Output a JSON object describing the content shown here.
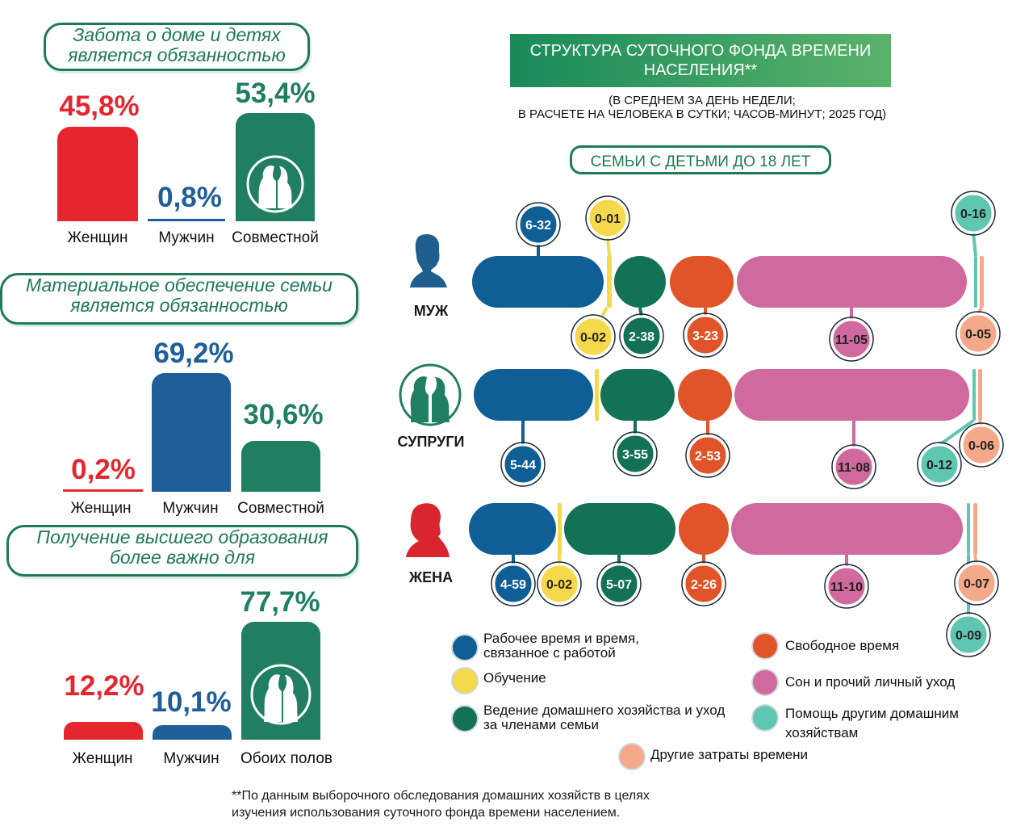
{
  "left_charts": [
    {
      "title_lines": [
        "Забота о доме и детях",
        "является обязанностью"
      ],
      "bars": [
        {
          "label": "Женщин",
          "pct": "45,8%",
          "value": 45.8,
          "color": "#e5262f"
        },
        {
          "label": "Мужчин",
          "pct": "0,8%",
          "value": 0.8,
          "color": "#1f5f99"
        },
        {
          "label": "Совместной",
          "pct": "53,4%",
          "value": 53.4,
          "color": "#1f7f60"
        }
      ]
    },
    {
      "title_lines": [
        "Материальное обеспечение семьи",
        "является обязанностью"
      ],
      "bars": [
        {
          "label": "Женщин",
          "pct": "0,2%",
          "value": 0.2,
          "color": "#e5262f"
        },
        {
          "label": "Мужчин",
          "pct": "69,2%",
          "value": 69.2,
          "color": "#1f5f99"
        },
        {
          "label": "Совместной",
          "pct": "30,6%",
          "value": 30.6,
          "color": "#1f7f60"
        }
      ]
    },
    {
      "title_lines": [
        "Получение высшего образования",
        "более важно для"
      ],
      "bars": [
        {
          "label": "Женщин",
          "pct": "12,2%",
          "value": 12.2,
          "color": "#e5262f"
        },
        {
          "label": "Мужчин",
          "pct": "10,1%",
          "value": 10.1,
          "color": "#1f5f99"
        },
        {
          "label": "Обоих полов",
          "pct": "77,7%",
          "value": 77.7,
          "color": "#1f7f60"
        }
      ]
    }
  ],
  "title_lines": [
    "СТРУКТУРА СУТОЧНОГО ФОНДА ВРЕМЕНИ",
    "НАСЕЛЕНИЯ**"
  ],
  "subtitle_lines": [
    "(В СРЕДНЕМ ЗА ДЕНЬ НЕДЕЛИ;",
    "В РАСЧЕТЕ НА ЧЕЛОВЕКА В СУТКИ; ЧАСОВ-МИНУТ; 2025 ГОД)"
  ],
  "group_label": "СЕМЬИ С ДЕТЬМИ ДО 18 ЛЕТ",
  "colors": {
    "work": "#0f5f96",
    "study": "#f5d94a",
    "household": "#137254",
    "free": "#e1542a",
    "sleep": "#d06a9e",
    "help": "#5fc6b1",
    "other": "#f4a98a",
    "accent_green": "#1e7a55"
  },
  "chart_data": {
    "type": "bar",
    "orientation": "horizontal-stacked",
    "units": "часов-минут",
    "categories": [
      "МУЖ",
      "СУПРУГИ",
      "ЖЕНА"
    ],
    "series": [
      {
        "name": "Рабочее время и время, связанное с работой",
        "key": "work",
        "values": [
          "6-32",
          "5-44",
          "4-59"
        ]
      },
      {
        "name": "Обучение",
        "key": "study",
        "values": [
          "0-02",
          "0-01",
          "0-02"
        ]
      },
      {
        "name": "Ведение домашнего хозяйства и уход за членами семьи",
        "key": "household",
        "values": [
          "2-38",
          "3-55",
          "5-07"
        ]
      },
      {
        "name": "Свободное время",
        "key": "free",
        "values": [
          "3-23",
          "2-53",
          "2-26"
        ]
      },
      {
        "name": "Сон и прочий личный уход",
        "key": "sleep",
        "values": [
          "11-05",
          "11-08",
          "11-10"
        ]
      },
      {
        "name": "Помощь другим домашним хозяйствам",
        "key": "help",
        "values": [
          "0-16",
          "0-12",
          "0-09"
        ]
      },
      {
        "name": "Другие затраты времени",
        "key": "other",
        "values": [
          "0-05",
          "0-06",
          "0-07"
        ]
      }
    ],
    "legend_position": "bottom"
  },
  "footnote_lines": [
    "**По данным выборочного обследования домашних хозяйств в целях",
    "изучения использования суточного фонда времени населением."
  ]
}
